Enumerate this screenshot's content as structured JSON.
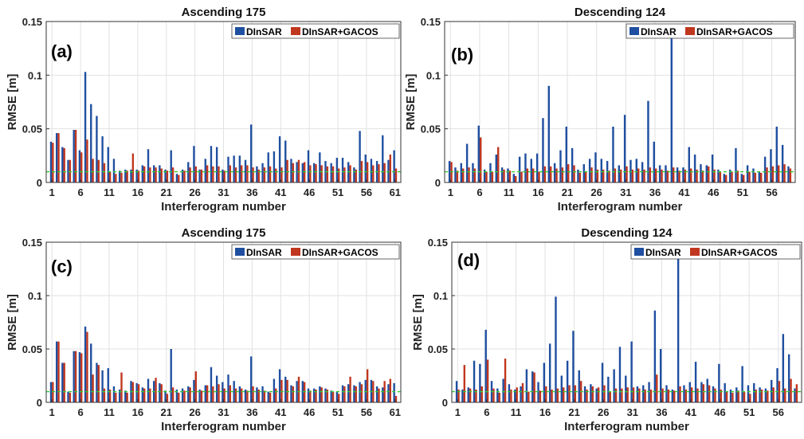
{
  "figure": {
    "colors": {
      "dinsar": "#1f4fa0",
      "gacos": "#c0361e",
      "reference_line": "#33cc33"
    }
  },
  "chart_data": [
    {
      "type": "bar",
      "panel": "(a)",
      "title": "Ascending 175",
      "xlabel": "Interferogram number",
      "ylabel": "RMSE [m]",
      "ylim": [
        0,
        0.15
      ],
      "yticks": [
        "0",
        "0.05",
        "0.1",
        "0.15"
      ],
      "xticks": [
        "1",
        "6",
        "11",
        "16",
        "21",
        "26",
        "31",
        "36",
        "41",
        "46",
        "51",
        "56",
        "61"
      ],
      "grid": true,
      "legend_position": "top-right",
      "reference_line": 0.01,
      "categories": [
        1,
        2,
        3,
        4,
        5,
        6,
        7,
        8,
        9,
        10,
        11,
        12,
        13,
        14,
        15,
        16,
        17,
        18,
        19,
        20,
        21,
        22,
        23,
        24,
        25,
        26,
        27,
        28,
        29,
        30,
        31,
        32,
        33,
        34,
        35,
        36,
        37,
        38,
        39,
        40,
        41,
        42,
        43,
        44,
        45,
        46,
        47,
        48,
        49,
        50,
        51,
        52,
        53,
        54,
        55,
        56,
        57,
        58,
        59,
        60,
        61
      ],
      "series": [
        {
          "name": "DInSAR",
          "values": [
            0.038,
            0.046,
            0.033,
            0.021,
            0.049,
            0.03,
            0.103,
            0.073,
            0.062,
            0.043,
            0.033,
            0.022,
            0.011,
            0.012,
            0.012,
            0.012,
            0.016,
            0.031,
            0.016,
            0.016,
            0.012,
            0.03,
            0.008,
            0.012,
            0.019,
            0.034,
            0.012,
            0.022,
            0.034,
            0.033,
            0.012,
            0.024,
            0.025,
            0.025,
            0.021,
            0.054,
            0.015,
            0.018,
            0.028,
            0.029,
            0.043,
            0.039,
            0.022,
            0.019,
            0.018,
            0.03,
            0.018,
            0.028,
            0.02,
            0.018,
            0.023,
            0.023,
            0.019,
            0.014,
            0.048,
            0.026,
            0.022,
            0.02,
            0.044,
            0.021,
            0.03
          ]
        },
        {
          "name": "DInSAR+GACOS",
          "values": [
            0.037,
            0.046,
            0.032,
            0.021,
            0.049,
            0.028,
            0.04,
            0.022,
            0.021,
            0.018,
            0.01,
            0.008,
            0.009,
            0.011,
            0.027,
            0.011,
            0.015,
            0.014,
            0.014,
            0.013,
            0.011,
            0.014,
            0.007,
            0.011,
            0.014,
            0.015,
            0.012,
            0.016,
            0.015,
            0.015,
            0.011,
            0.016,
            0.014,
            0.016,
            0.016,
            0.014,
            0.012,
            0.014,
            0.015,
            0.013,
            0.014,
            0.021,
            0.018,
            0.021,
            0.019,
            0.016,
            0.017,
            0.016,
            0.015,
            0.015,
            0.013,
            0.014,
            0.016,
            0.012,
            0.02,
            0.019,
            0.016,
            0.017,
            0.018,
            0.026,
            0.013
          ]
        }
      ]
    },
    {
      "type": "bar",
      "panel": "(b)",
      "title": "Descending 124",
      "xlabel": "Interferogram number",
      "ylabel": "RMSE [m]",
      "ylim": [
        0,
        0.15
      ],
      "yticks": [
        "0",
        "0.05",
        "0.1",
        "0.15"
      ],
      "xticks": [
        "1",
        "6",
        "11",
        "16",
        "21",
        "26",
        "31",
        "36",
        "41",
        "46",
        "51",
        "56"
      ],
      "grid": true,
      "legend_position": "top-right",
      "reference_line": 0.01,
      "categories": [
        1,
        2,
        3,
        4,
        5,
        6,
        7,
        8,
        9,
        10,
        11,
        12,
        13,
        14,
        15,
        16,
        17,
        18,
        19,
        20,
        21,
        22,
        23,
        24,
        25,
        26,
        27,
        28,
        29,
        30,
        31,
        32,
        33,
        34,
        35,
        36,
        37,
        38,
        39,
        40,
        41,
        42,
        43,
        44,
        45,
        46,
        47,
        48,
        49,
        50,
        51,
        52,
        53,
        54,
        55,
        56,
        57,
        58,
        59
      ],
      "series": [
        {
          "name": "DInSAR",
          "values": [
            0.02,
            0.014,
            0.018,
            0.036,
            0.018,
            0.053,
            0.012,
            0.018,
            0.026,
            0.014,
            0.013,
            0.008,
            0.024,
            0.027,
            0.022,
            0.027,
            0.06,
            0.09,
            0.018,
            0.03,
            0.052,
            0.032,
            0.012,
            0.017,
            0.022,
            0.028,
            0.022,
            0.02,
            0.052,
            0.016,
            0.063,
            0.021,
            0.022,
            0.019,
            0.076,
            0.038,
            0.016,
            0.016,
            0.135,
            0.014,
            0.014,
            0.033,
            0.026,
            0.017,
            0.016,
            0.026,
            0.012,
            0.008,
            0.012,
            0.032,
            0.008,
            0.016,
            0.013,
            0.01,
            0.024,
            0.031,
            0.052,
            0.035,
            0.015
          ]
        },
        {
          "name": "DInSAR+GACOS",
          "values": [
            0.019,
            0.011,
            0.013,
            0.014,
            0.013,
            0.042,
            0.01,
            0.01,
            0.033,
            0.012,
            0.011,
            0.006,
            0.01,
            0.013,
            0.013,
            0.01,
            0.015,
            0.015,
            0.013,
            0.014,
            0.017,
            0.016,
            0.009,
            0.01,
            0.014,
            0.012,
            0.012,
            0.011,
            0.013,
            0.012,
            0.015,
            0.012,
            0.013,
            0.012,
            0.014,
            0.013,
            0.012,
            0.011,
            0.014,
            0.011,
            0.012,
            0.013,
            0.012,
            0.011,
            0.015,
            0.012,
            0.01,
            0.007,
            0.01,
            0.011,
            0.007,
            0.01,
            0.009,
            0.009,
            0.014,
            0.015,
            0.016,
            0.017,
            0.013
          ]
        }
      ]
    },
    {
      "type": "bar",
      "panel": "(c)",
      "title": "Ascending 175",
      "xlabel": "Interferogram number",
      "ylabel": "RMSE [m]",
      "ylim": [
        0,
        0.15
      ],
      "yticks": [
        "0",
        "0.05",
        "0.1",
        "0.15"
      ],
      "xticks": [
        "1",
        "6",
        "11",
        "16",
        "21",
        "26",
        "31",
        "36",
        "41",
        "46",
        "51",
        "56",
        "61"
      ],
      "grid": true,
      "legend_position": "top-right",
      "reference_line": 0.01,
      "categories": [
        1,
        2,
        3,
        4,
        5,
        6,
        7,
        8,
        9,
        10,
        11,
        12,
        13,
        14,
        15,
        16,
        17,
        18,
        19,
        20,
        21,
        22,
        23,
        24,
        25,
        26,
        27,
        28,
        29,
        30,
        31,
        32,
        33,
        34,
        35,
        36,
        37,
        38,
        39,
        40,
        41,
        42,
        43,
        44,
        45,
        46,
        47,
        48,
        49,
        50,
        51,
        52,
        53,
        54,
        55,
        56,
        57,
        58,
        59,
        60,
        61
      ],
      "series": [
        {
          "name": "DInSAR",
          "values": [
            0.019,
            0.057,
            0.037,
            0.01,
            0.048,
            0.047,
            0.071,
            0.055,
            0.037,
            0.03,
            0.032,
            0.015,
            0.012,
            0.011,
            0.02,
            0.018,
            0.014,
            0.022,
            0.02,
            0.018,
            0.011,
            0.05,
            0.012,
            0.013,
            0.015,
            0.021,
            0.012,
            0.016,
            0.033,
            0.025,
            0.019,
            0.026,
            0.02,
            0.015,
            0.012,
            0.043,
            0.014,
            0.015,
            0.01,
            0.022,
            0.031,
            0.024,
            0.016,
            0.02,
            0.02,
            0.013,
            0.013,
            0.015,
            0.013,
            0.011,
            0.01,
            0.016,
            0.017,
            0.016,
            0.019,
            0.021,
            0.021,
            0.015,
            0.014,
            0.017,
            0.018
          ]
        },
        {
          "name": "DInSAR+GACOS",
          "values": [
            0.019,
            0.057,
            0.037,
            0.009,
            0.048,
            0.046,
            0.066,
            0.026,
            0.035,
            0.013,
            0.012,
            0.009,
            0.028,
            0.009,
            0.019,
            0.017,
            0.013,
            0.013,
            0.023,
            0.017,
            0.008,
            0.014,
            0.009,
            0.011,
            0.014,
            0.029,
            0.011,
            0.016,
            0.015,
            0.017,
            0.013,
            0.016,
            0.013,
            0.013,
            0.011,
            0.015,
            0.012,
            0.011,
            0.009,
            0.013,
            0.021,
            0.021,
            0.015,
            0.024,
            0.019,
            0.011,
            0.012,
            0.014,
            0.012,
            0.01,
            0.008,
            0.015,
            0.024,
            0.015,
            0.017,
            0.031,
            0.02,
            0.013,
            0.02,
            0.022,
            0.006
          ]
        }
      ]
    },
    {
      "type": "bar",
      "panel": "(d)",
      "title": "Descending 124",
      "xlabel": "Interferogram number",
      "ylabel": "RMSE [m]",
      "ylim": [
        0,
        0.15
      ],
      "yticks": [
        "0",
        "0.05",
        "0.1",
        "0.15"
      ],
      "xticks": [
        "1",
        "6",
        "11",
        "16",
        "21",
        "26",
        "31",
        "36",
        "41",
        "46",
        "51",
        "56"
      ],
      "grid": true,
      "legend_position": "top-right",
      "reference_line": 0.01,
      "categories": [
        1,
        2,
        3,
        4,
        5,
        6,
        7,
        8,
        9,
        10,
        11,
        12,
        13,
        14,
        15,
        16,
        17,
        18,
        19,
        20,
        21,
        22,
        23,
        24,
        25,
        26,
        27,
        28,
        29,
        30,
        31,
        32,
        33,
        34,
        35,
        36,
        37,
        38,
        39,
        40,
        41,
        42,
        43,
        44,
        45,
        46,
        47,
        48,
        49,
        50,
        51,
        52,
        53,
        54,
        55,
        56,
        57,
        58,
        59
      ],
      "series": [
        {
          "name": "DInSAR",
          "values": [
            0.02,
            0.012,
            0.014,
            0.039,
            0.036,
            0.068,
            0.02,
            0.013,
            0.022,
            0.017,
            0.012,
            0.015,
            0.031,
            0.029,
            0.019,
            0.037,
            0.055,
            0.099,
            0.025,
            0.039,
            0.067,
            0.03,
            0.015,
            0.017,
            0.013,
            0.037,
            0.024,
            0.031,
            0.052,
            0.025,
            0.057,
            0.015,
            0.016,
            0.019,
            0.086,
            0.05,
            0.016,
            0.012,
            0.135,
            0.016,
            0.019,
            0.038,
            0.019,
            0.022,
            0.015,
            0.036,
            0.018,
            0.012,
            0.014,
            0.034,
            0.016,
            0.018,
            0.014,
            0.013,
            0.021,
            0.032,
            0.064,
            0.045,
            0.013
          ]
        },
        {
          "name": "DInSAR+GACOS",
          "values": [
            0.012,
            0.035,
            0.013,
            0.012,
            0.015,
            0.04,
            0.013,
            0.009,
            0.041,
            0.012,
            0.014,
            0.018,
            0.01,
            0.028,
            0.011,
            0.015,
            0.012,
            0.013,
            0.014,
            0.016,
            0.016,
            0.02,
            0.012,
            0.015,
            0.014,
            0.016,
            0.01,
            0.013,
            0.013,
            0.014,
            0.014,
            0.013,
            0.012,
            0.012,
            0.026,
            0.013,
            0.012,
            0.011,
            0.015,
            0.012,
            0.014,
            0.013,
            0.017,
            0.016,
            0.013,
            0.012,
            0.01,
            0.009,
            0.011,
            0.01,
            0.008,
            0.012,
            0.012,
            0.011,
            0.014,
            0.02,
            0.013,
            0.022,
            0.017
          ]
        }
      ]
    }
  ]
}
